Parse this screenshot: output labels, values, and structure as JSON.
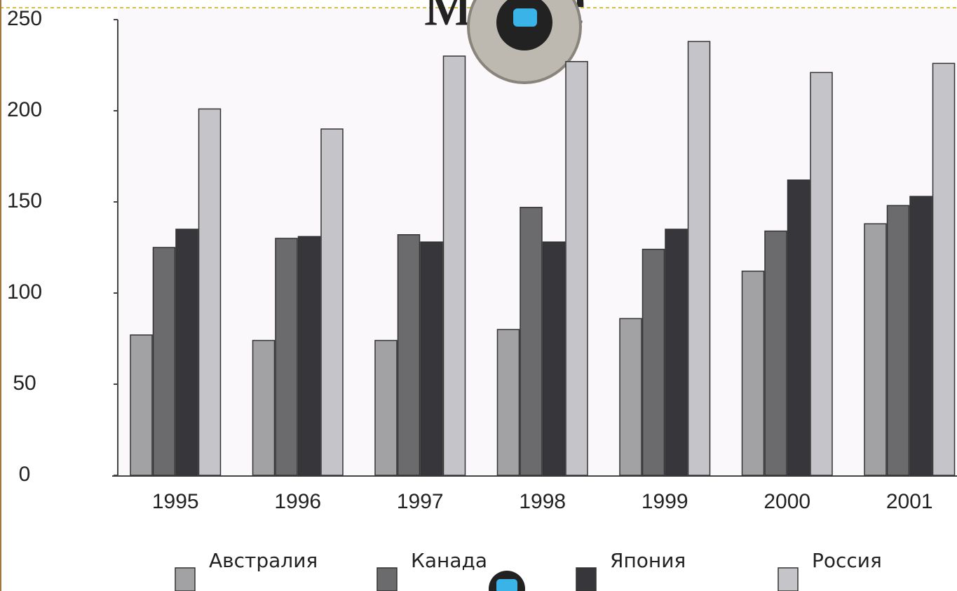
{
  "chart_data": {
    "type": "bar",
    "title": "мире",
    "categories": [
      "1995",
      "1996",
      "1997",
      "1998",
      "1999",
      "2000",
      "2001"
    ],
    "series": [
      {
        "name": "Австралия",
        "color": "#a2a2a4",
        "values": [
          77,
          74,
          74,
          80,
          86,
          112,
          138
        ]
      },
      {
        "name": "Канада",
        "color": "#6b6b6d",
        "values": [
          125,
          130,
          132,
          147,
          124,
          134,
          148
        ]
      },
      {
        "name": "Япония",
        "color": "#37363b",
        "values": [
          135,
          131,
          128,
          128,
          135,
          162,
          153
        ]
      },
      {
        "name": "Россия",
        "color": "#c5c4c8",
        "values": [
          201,
          190,
          230,
          227,
          238,
          221,
          226
        ]
      }
    ],
    "ylim": [
      0,
      250
    ],
    "yticks": [
      0,
      50,
      100,
      150,
      200,
      250
    ]
  }
}
